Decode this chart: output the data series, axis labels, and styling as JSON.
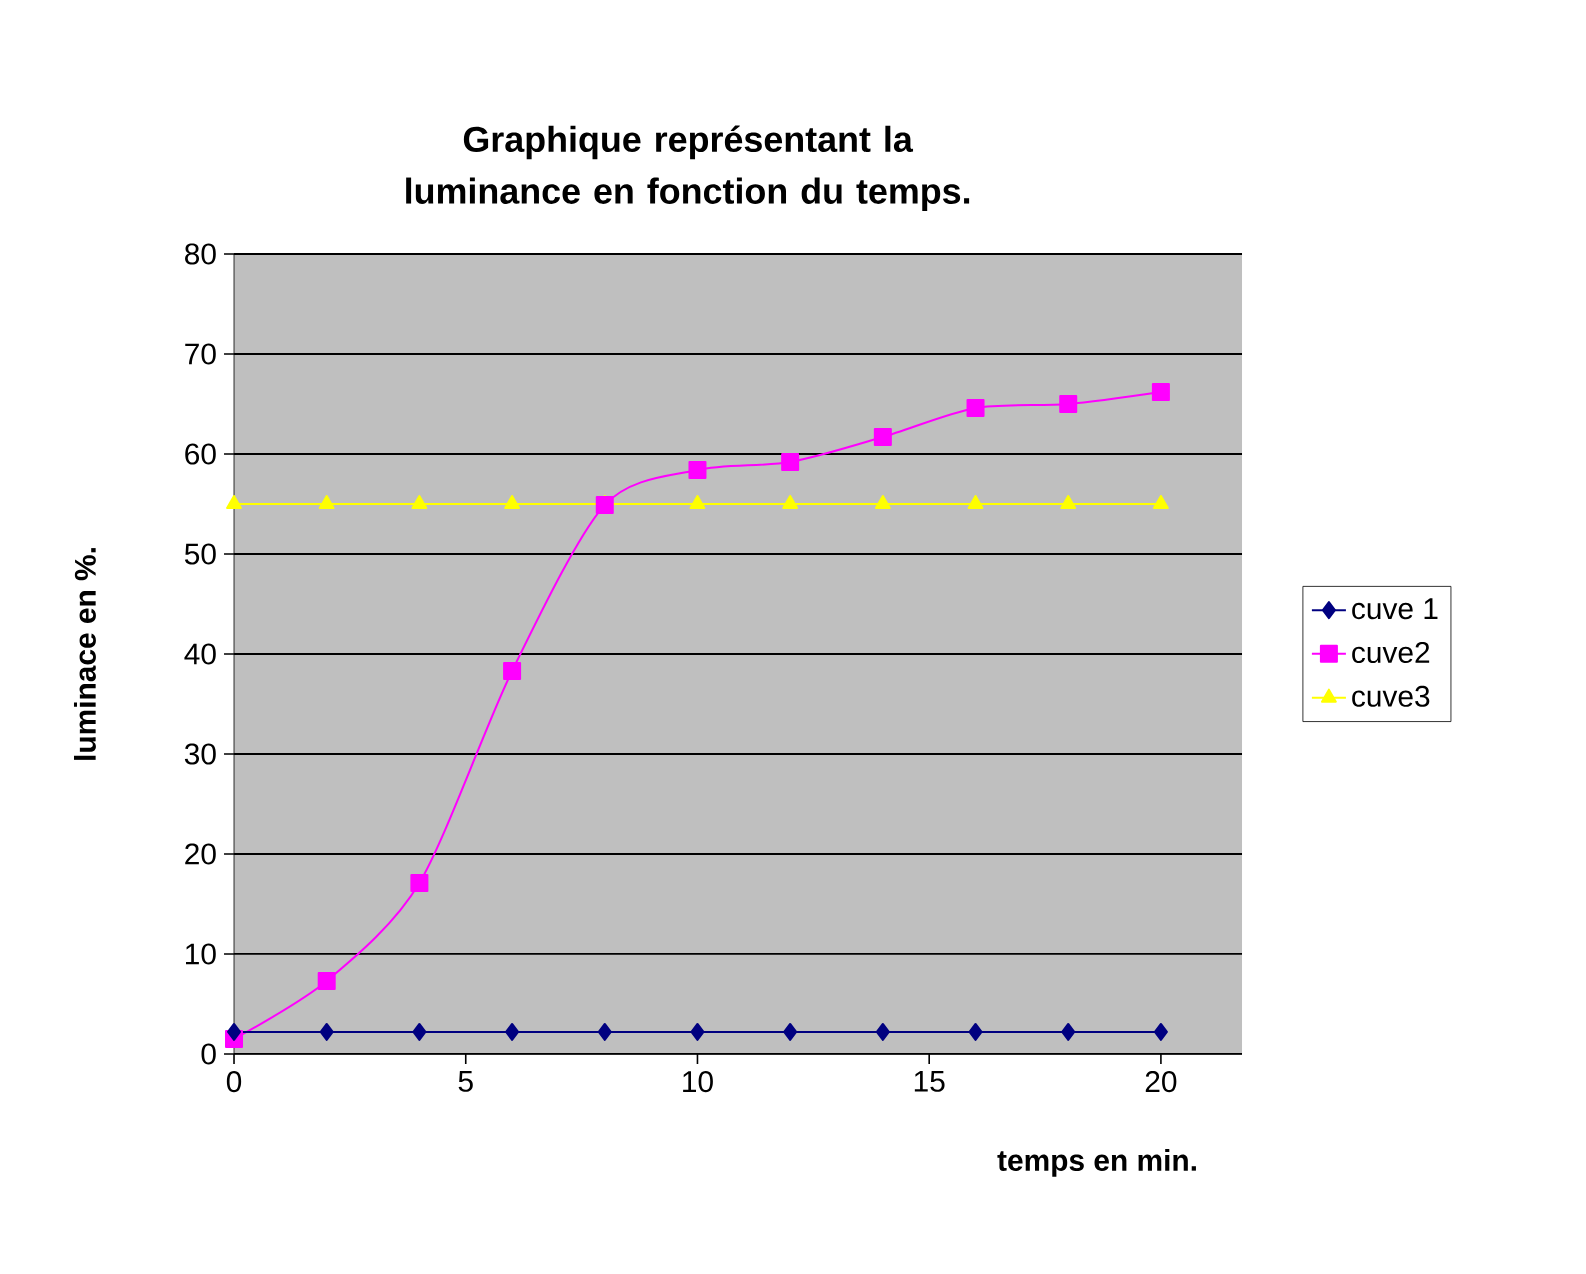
{
  "chart_data": {
    "type": "line",
    "title": "Graphique représentant la luminance en fonction du temps.",
    "xlabel": "temps en min.",
    "ylabel": "luminace en %.",
    "x": [
      0,
      2,
      4,
      6,
      8,
      10,
      12,
      14,
      16,
      18,
      20
    ],
    "series": [
      {
        "name": "cuve 1",
        "color": "#000080",
        "marker": "diamond",
        "values": [
          2.2,
          2.2,
          2.2,
          2.2,
          2.2,
          2.2,
          2.2,
          2.2,
          2.2,
          2.2,
          2.2
        ]
      },
      {
        "name": "cuve2",
        "color": "#ff00ff",
        "marker": "square",
        "values": [
          1.5,
          7.3,
          17.1,
          38.3,
          54.9,
          58.4,
          59.2,
          61.7,
          64.6,
          65.0,
          66.2
        ]
      },
      {
        "name": "cuve3",
        "color": "#ffff00",
        "marker": "triangle",
        "values": [
          55,
          55,
          55,
          55,
          55,
          55,
          55,
          55,
          55,
          55,
          55
        ]
      }
    ],
    "xlim": [
      0,
      21.75
    ],
    "xticks": [
      0,
      5,
      10,
      15,
      20
    ],
    "ylim": [
      0,
      80
    ],
    "yticks": [
      0,
      10,
      20,
      30,
      40,
      50,
      60,
      70,
      80
    ],
    "grid": "y",
    "legend": "right"
  }
}
